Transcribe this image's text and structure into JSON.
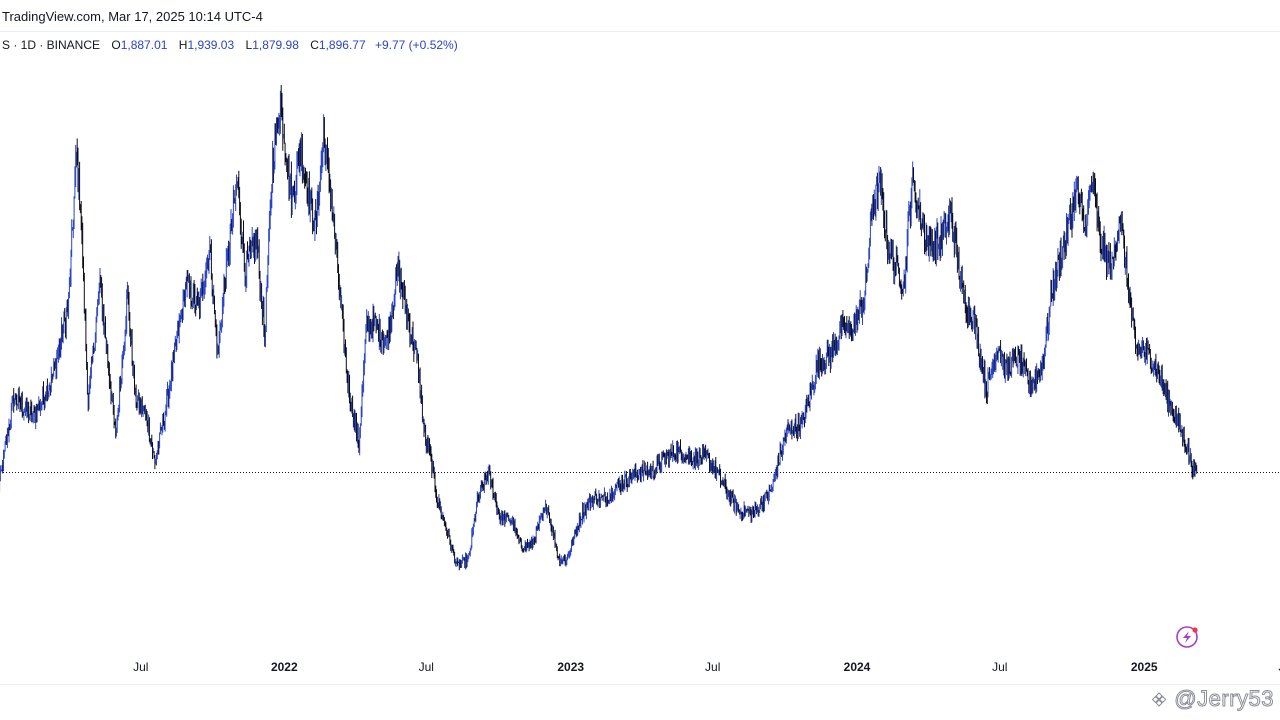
{
  "header": {
    "site_title": "TradingView.com, Mar 17, 2025 10:14 UTC-4"
  },
  "legend": {
    "symbol": "S · 1D · BINANCE",
    "open_key": "O",
    "open": "1,887.01",
    "high_key": "H",
    "high": "1,939.03",
    "low_key": "L",
    "low": "1,879.98",
    "close_key": "C",
    "close": "1,896.77",
    "change": "+9.77 (+0.52%)"
  },
  "watermark": {
    "text": "@Jerry53",
    "icon": "binance-diamond-icon"
  },
  "colors": {
    "up": "#2a44c8",
    "down": "#0b0e1a",
    "price_line": "#131722",
    "accent_icon": "#a43fc9"
  },
  "chart_data": {
    "type": "line",
    "title": "",
    "xlabel": "",
    "ylabel": "",
    "price_line_value": 1896.77,
    "ylim": [
      800,
      4950
    ],
    "x_ticks": [
      {
        "label": "Jul",
        "t": 182,
        "bold": false
      },
      {
        "label": "2022",
        "t": 365,
        "bold": true
      },
      {
        "label": "Jul",
        "t": 546,
        "bold": false
      },
      {
        "label": "2023",
        "t": 730,
        "bold": true
      },
      {
        "label": "Jul",
        "t": 911,
        "bold": false
      },
      {
        "label": "2024",
        "t": 1095,
        "bold": true
      },
      {
        "label": "Jul",
        "t": 1277,
        "bold": false
      },
      {
        "label": "2025",
        "t": 1461,
        "bold": true
      },
      {
        "label": "Jul",
        "t": 1642,
        "bold": false
      }
    ],
    "series": [
      {
        "name": "price",
        "t": [
          0,
          20,
          45,
          70,
          90,
          100,
          105,
          115,
          130,
          150,
          165,
          175,
          190,
          200,
          215,
          240,
          255,
          270,
          280,
          290,
          305,
          315,
          330,
          340,
          350,
          360,
          375,
          385,
          395,
          405,
          415,
          425,
          445,
          460,
          470,
          480,
          495,
          510,
          520,
          535,
          545,
          550,
          560,
          575,
          585,
          600,
          610,
          625,
          640,
          655,
          665,
          680,
          700,
          715,
          725,
          745,
          760,
          775,
          790,
          805,
          820,
          835,
          850,
          865,
          885,
          905,
          925,
          945,
          965,
          985,
          1005,
          1025,
          1045,
          1060,
          1075,
          1090,
          1105,
          1115,
          1125,
          1135,
          1145,
          1155,
          1165,
          1175,
          1185,
          1200,
          1215,
          1230,
          1245,
          1260,
          1275,
          1285,
          1300,
          1315,
          1330,
          1345,
          1360,
          1375,
          1385,
          1395,
          1405,
          1420,
          1430,
          1440,
          1450,
          1460,
          1475,
          1490,
          1505,
          1515,
          1523,
          1528
        ],
        "values": [
          1750,
          2450,
          2300,
          2600,
          3150,
          4250,
          3900,
          2400,
          3300,
          2150,
          3200,
          2450,
          2300,
          1950,
          2400,
          3300,
          3100,
          3550,
          2750,
          3350,
          4050,
          3400,
          3600,
          2900,
          4200,
          4650,
          3900,
          4300,
          4000,
          3700,
          4400,
          3900,
          2600,
          2100,
          3000,
          3000,
          2850,
          3400,
          3100,
          2700,
          2100,
          2050,
          1700,
          1400,
          1200,
          1250,
          1650,
          1900,
          1550,
          1550,
          1350,
          1350,
          1650,
          1250,
          1250,
          1600,
          1700,
          1700,
          1800,
          1850,
          1900,
          1900,
          2000,
          2050,
          2000,
          2000,
          1800,
          1600,
          1600,
          1750,
          2200,
          2250,
          2700,
          2750,
          2950,
          2950,
          3200,
          3900,
          4000,
          3550,
          3400,
          3300,
          4050,
          3800,
          3600,
          3600,
          3800,
          3200,
          3000,
          2500,
          2850,
          2650,
          2750,
          2550,
          2650,
          3300,
          3600,
          4000,
          3700,
          4050,
          3600,
          3400,
          3800,
          3300,
          2800,
          2800,
          2700,
          2450,
          2250,
          2100,
          1920,
          1896.77
        ]
      }
    ]
  }
}
